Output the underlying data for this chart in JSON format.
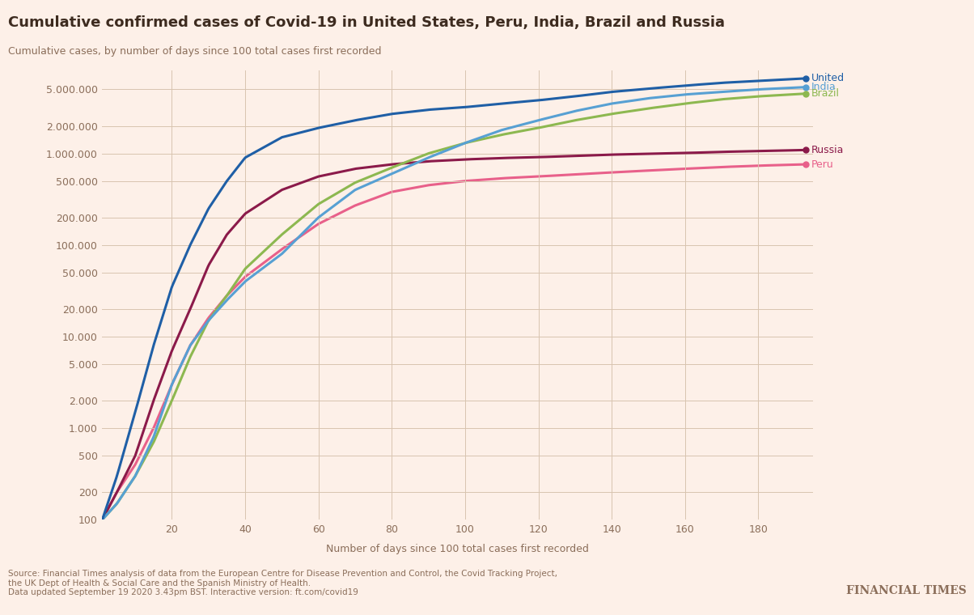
{
  "title": "Cumulative confirmed cases of Covid-19 in United States, Peru, India, Brazil and Russia",
  "subtitle": "Cumulative cases, by number of days since 100 total cases first recorded",
  "xlabel": "Number of days since 100 total cases first recorded",
  "background_color": "#fdf0e8",
  "series": {
    "United States": {
      "color": "#1f5fa6",
      "label": "United"
    },
    "India": {
      "color": "#57a0d3",
      "label": "India"
    },
    "Brazil": {
      "color": "#8db850",
      "label": "Brazil"
    },
    "Russia": {
      "color": "#8b1a4a",
      "label": "Russia"
    },
    "Peru": {
      "color": "#e8608a",
      "label": "Peru"
    }
  },
  "yticks": [
    100,
    200,
    500,
    1000,
    2000,
    5000,
    10000,
    20000,
    50000,
    100000,
    200000,
    500000,
    1000000,
    2000000,
    5000000
  ],
  "ytick_labels": [
    "100",
    "200",
    "500",
    "1.000",
    "2.000",
    "5.000",
    "10.000",
    "20.000",
    "50.000",
    "100.000",
    "200.000",
    "500.000",
    "1.000.000",
    "2.000.000",
    "5.000.000"
  ],
  "xticks": [
    20,
    40,
    60,
    80,
    100,
    120,
    140,
    160,
    180
  ],
  "xmin": 1,
  "xmax": 195,
  "ymin": 100,
  "ymax": 8000000,
  "source_text": "Source: Financial Times analysis of data from the European Centre for Disease Prevention and Control, the Covid Tracking Project,\nthe UK Dept of Health & Social Care and the Spanish Ministry of Health.\nData updated September 19 2020 3.43pm BST. Interactive version: ft.com/covid19",
  "ft_label": "FINANCIAL TIMES",
  "line_width": 2.2
}
